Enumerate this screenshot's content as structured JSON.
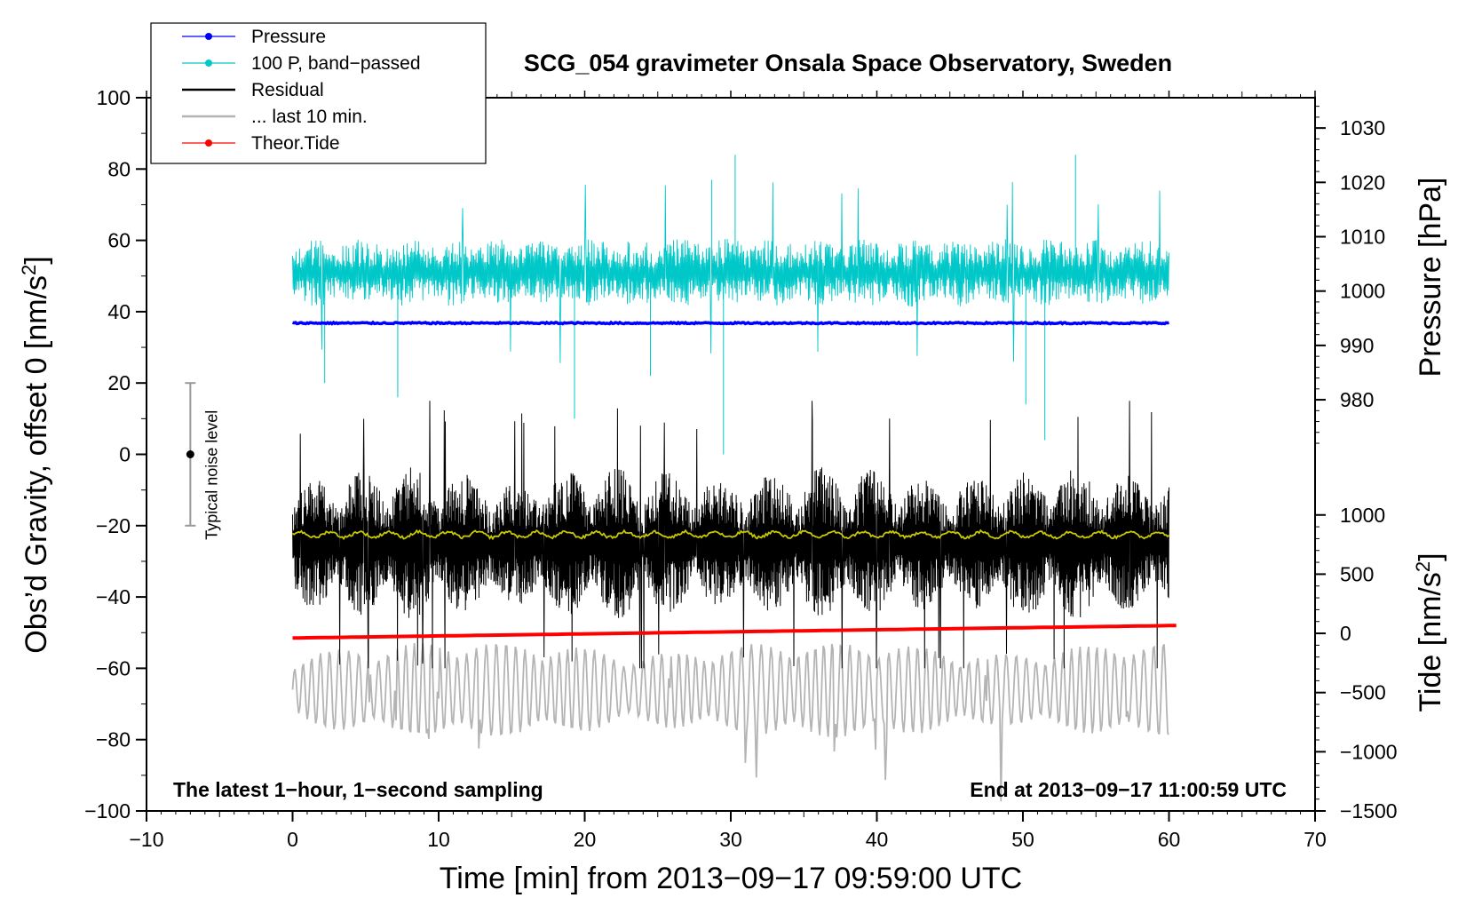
{
  "chart_data": {
    "type": "line",
    "title": "SCG_054 gravimeter Onsala Space Observatory, Sweden",
    "xlabel": "Time [min] from 2013−09−17 09:59:00 UTC",
    "ylabel_left": "Obs’d Gravity, offset 0 [nm/s",
    "ylabel_left_sup": "2",
    "ylabel_left_end": "]",
    "ylabel_right_pressure": "Pressure [hPa]",
    "ylabel_right_tide": "Tide [nm/s",
    "ylabel_right_tide_sup": "2",
    "ylabel_right_tide_end": "]",
    "xlim": [
      -10,
      70
    ],
    "ylim": [
      -100,
      100
    ],
    "x_ticks": [
      -10,
      0,
      10,
      20,
      30,
      40,
      50,
      60,
      70
    ],
    "x_tick_labels": [
      "−10",
      "0",
      "10",
      "20",
      "30",
      "40",
      "50",
      "60",
      "70"
    ],
    "y_ticks": [
      -100,
      -80,
      -60,
      -40,
      -20,
      0,
      20,
      40,
      60,
      80,
      100
    ],
    "y_tick_labels": [
      "−100",
      "−80",
      "−60",
      "−40",
      "−20",
      "0",
      "20",
      "40",
      "60",
      "80",
      "100"
    ],
    "pressure_axis": {
      "ticks": [
        980,
        990,
        1000,
        1010,
        1020,
        1030
      ],
      "tick_labels": [
        "980",
        "990",
        "1000",
        "1010",
        "1020",
        "1030"
      ],
      "left_value_at": [
        [
          980,
          15.3
        ],
        [
          1030,
          91.5
        ]
      ]
    },
    "tide_axis": {
      "ticks": [
        -1500,
        -1000,
        -500,
        0,
        500,
        1000
      ],
      "tick_labels": [
        "−1500",
        "−1000",
        "−500",
        "0",
        "500",
        "1000"
      ],
      "left_value_at": [
        [
          -1500,
          -100
        ],
        [
          1000,
          -17
        ]
      ]
    },
    "legend": {
      "placement": "top-left",
      "entries": [
        {
          "label": "Pressure",
          "color": "#0000ff",
          "marker": true
        },
        {
          "label": "100 P, band−passed",
          "color": "#00c8c8",
          "marker": true
        },
        {
          "label": "Residual",
          "color": "#000000",
          "marker": false
        },
        {
          "label": "... last 10 min.",
          "color": "#b4b4b4",
          "marker": false
        },
        {
          "label": "Theor.Tide",
          "color": "#ff0000",
          "marker": true
        }
      ]
    },
    "noise_bar": {
      "label": "Typical noise level",
      "x": -7,
      "center": 0,
      "low": -20,
      "high": 20
    },
    "annotation_left": "The latest 1−hour, 1−second sampling",
    "annotation_right": "End at 2013−09−17 11:00:59 UTC",
    "series": [
      {
        "name": "Pressure (left units)",
        "color": "#0000ff",
        "x_range": [
          0,
          60
        ],
        "level": 36.8,
        "jitter": 0.4
      },
      {
        "name": "100 P, band-passed",
        "color": "#00c8c8",
        "x_range": [
          0,
          60
        ],
        "level": 51,
        "amplitude": 8,
        "spikes": [
          [
            2.2,
            20
          ],
          [
            7.2,
            16
          ],
          [
            19.3,
            10
          ],
          [
            24.5,
            22
          ],
          [
            29.5,
            0
          ],
          [
            28.7,
            77
          ],
          [
            30.3,
            84
          ],
          [
            50.2,
            14
          ],
          [
            51.5,
            4
          ],
          [
            53.6,
            84
          ]
        ]
      },
      {
        "name": "Residual",
        "color": "#000000",
        "x_range": [
          0,
          60
        ],
        "level": -25,
        "amplitude": 18,
        "extent": [
          -60,
          15
        ]
      },
      {
        "name": "Residual smoothed",
        "color": "#c8c800",
        "x_range": [
          0,
          60
        ],
        "level": -22.5,
        "jitter": 0.8
      },
      {
        "name": "... last 10 min.",
        "color": "#b4b4b4",
        "x_range": [
          0,
          60
        ],
        "level": -66,
        "amplitude": 10,
        "extent": [
          -99,
          -40
        ]
      },
      {
        "name": "Theor.Tide (left units)",
        "color": "#ff0000",
        "x": [
          0,
          60.5
        ],
        "y": [
          -51.5,
          -48
        ]
      }
    ]
  }
}
